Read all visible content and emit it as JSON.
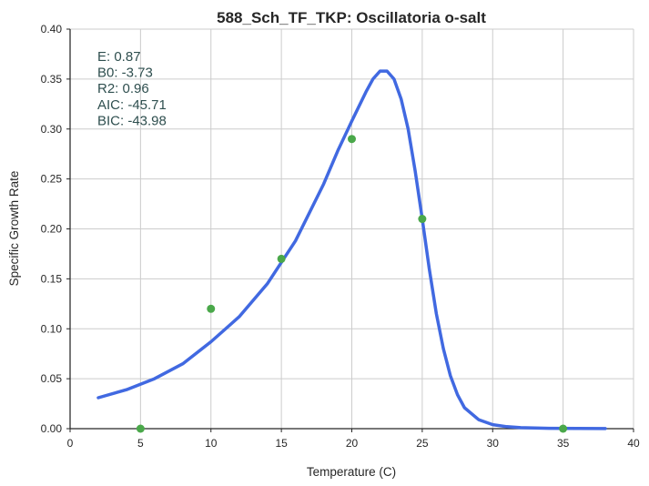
{
  "chart_data": {
    "type": "scatter",
    "title": "588_Sch_TF_TKP: Oscillatoria o-salt",
    "xlabel": "Temperature (C)",
    "ylabel": "Specific Growth Rate",
    "xlim": [
      0,
      40
    ],
    "ylim": [
      0,
      0.4
    ],
    "xticks": [
      0,
      5,
      10,
      15,
      20,
      25,
      30,
      35,
      40
    ],
    "yticks": [
      0.0,
      0.05,
      0.1,
      0.15,
      0.2,
      0.25,
      0.3,
      0.35,
      0.4
    ],
    "xtick_labels": [
      "0",
      "5",
      "10",
      "15",
      "20",
      "25",
      "30",
      "35",
      "40"
    ],
    "ytick_labels": [
      "0.00",
      "0.05",
      "0.10",
      "0.15",
      "0.20",
      "0.25",
      "0.30",
      "0.35",
      "0.40"
    ],
    "grid": true,
    "annotations": [
      "E:  0.87",
      "B0:  -3.73",
      "R2:  0.96",
      "AIC: -45.71",
      "BIC: -43.98"
    ],
    "series": [
      {
        "kind": "scatter",
        "color": "#4aa84a",
        "x": [
          5,
          10,
          15,
          20,
          25,
          35
        ],
        "y": [
          0.0,
          0.12,
          0.17,
          0.29,
          0.21,
          0.0
        ]
      },
      {
        "kind": "line",
        "color": "#4169e1",
        "x": [
          2,
          4,
          6,
          8,
          10,
          12,
          14,
          16,
          18,
          19,
          20,
          21,
          21.5,
          22,
          22.5,
          23,
          23.5,
          24,
          24.5,
          25,
          25.5,
          26,
          26.5,
          27,
          27.5,
          28,
          29,
          30,
          31,
          32,
          34,
          36,
          38
        ],
        "y": [
          0.031,
          0.039,
          0.05,
          0.065,
          0.087,
          0.112,
          0.145,
          0.188,
          0.245,
          0.278,
          0.308,
          0.337,
          0.35,
          0.358,
          0.358,
          0.35,
          0.33,
          0.3,
          0.258,
          0.21,
          0.16,
          0.115,
          0.08,
          0.053,
          0.034,
          0.021,
          0.009,
          0.004,
          0.002,
          0.001,
          0.0004,
          0.0002,
          0.0001
        ]
      }
    ]
  }
}
